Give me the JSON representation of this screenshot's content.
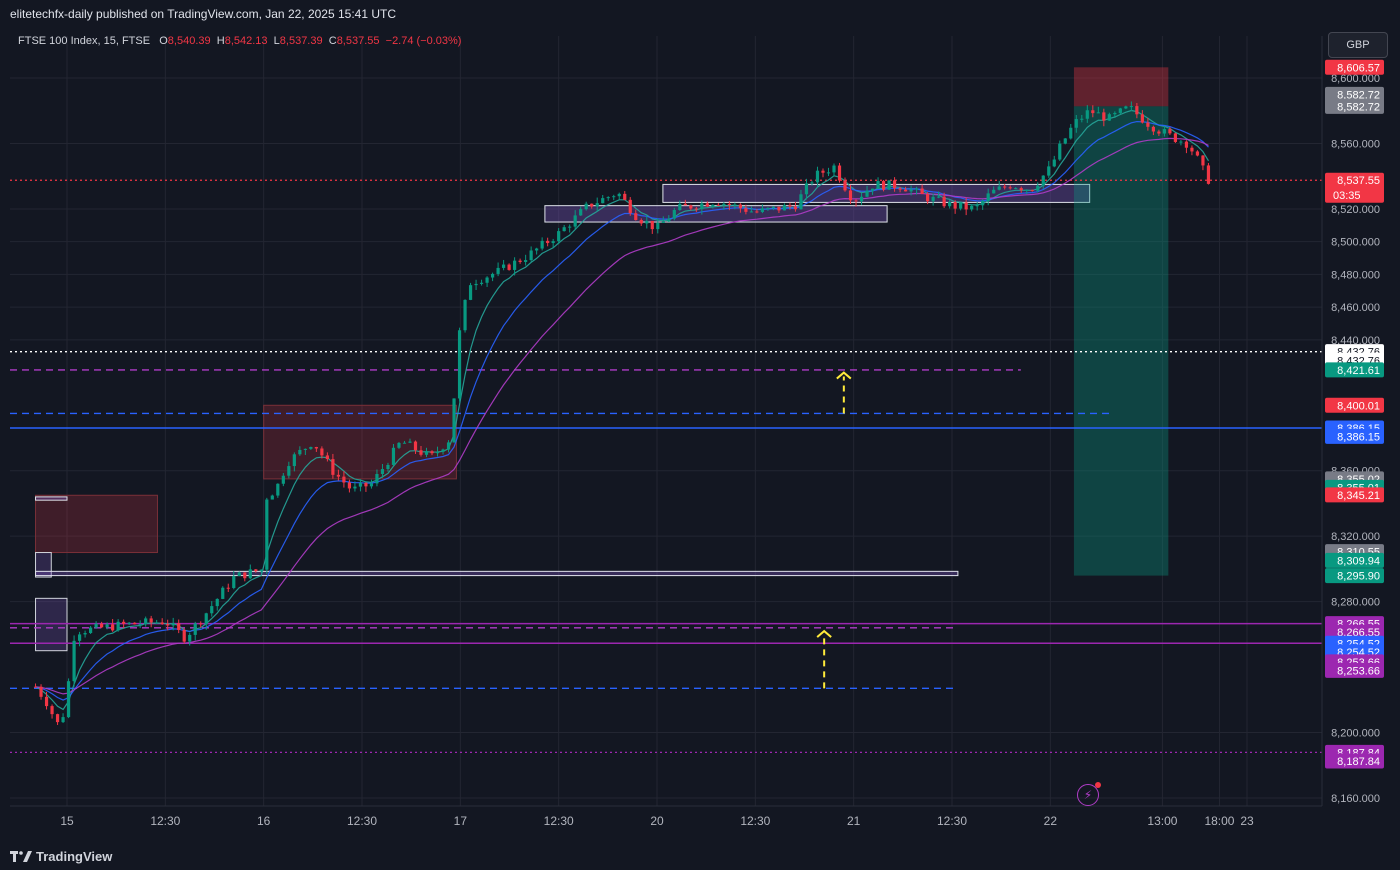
{
  "header": {
    "published": "elitetechfx-daily published on TradingView.com, Jan 22, 2025 15:41 UTC"
  },
  "legend": {
    "symbol": "FTSE 100 Index, 15, FTSE",
    "o_label": "O",
    "o": "8,540.39",
    "h_label": "H",
    "h": "8,542.13",
    "l_label": "L",
    "l": "8,537.39",
    "c_label": "C",
    "c": "8,537.55",
    "change": "−2.74 (−0.03%)"
  },
  "currency": "GBP",
  "footer": {
    "brand": "TradingView"
  },
  "colors": {
    "background": "#131722",
    "grid": "#232632",
    "up": "#089981",
    "down": "#f23645",
    "ema_fast": "#26a69a",
    "ema_mid": "#2962ff",
    "ema_slow": "#b03cc8"
  },
  "chart_data": {
    "type": "candlestick",
    "ylim": [
      8150,
      8620
    ],
    "y_ticks": [
      8160,
      8200,
      8280,
      8320,
      8360,
      8440,
      8460,
      8480,
      8500,
      8520,
      8560,
      8600
    ],
    "x_ticks": [
      {
        "label": "15",
        "t": 0.0
      },
      {
        "label": "12:30",
        "t": 0.5
      },
      {
        "label": "16",
        "t": 1.0
      },
      {
        "label": "12:30",
        "t": 1.5
      },
      {
        "label": "17",
        "t": 2.0
      },
      {
        "label": "12:30",
        "t": 2.5
      },
      {
        "label": "20",
        "t": 3.0
      },
      {
        "label": "12:30",
        "t": 3.5
      },
      {
        "label": "21",
        "t": 4.0
      },
      {
        "label": "12:30",
        "t": 4.5
      },
      {
        "label": "22",
        "t": 5.0
      },
      {
        "label": "13:00",
        "t": 5.57
      },
      {
        "label": "18:00",
        "t": 5.86
      },
      {
        "label": "23",
        "t": 6.0
      }
    ],
    "t_range": [
      -0.16,
      6.48
    ],
    "price_path": [
      [
        -0.16,
        8228
      ],
      [
        -0.1,
        8218
      ],
      [
        -0.05,
        8205
      ],
      [
        0.0,
        8215
      ],
      [
        0.02,
        8255
      ],
      [
        0.05,
        8262
      ],
      [
        0.3,
        8266
      ],
      [
        0.5,
        8268
      ],
      [
        0.6,
        8258
      ],
      [
        0.7,
        8272
      ],
      [
        0.85,
        8295
      ],
      [
        1.0,
        8300
      ],
      [
        1.02,
        8355
      ],
      [
        1.05,
        8345
      ],
      [
        1.12,
        8365
      ],
      [
        1.25,
        8378
      ],
      [
        1.35,
        8360
      ],
      [
        1.45,
        8348
      ],
      [
        1.55,
        8352
      ],
      [
        1.7,
        8378
      ],
      [
        1.85,
        8368
      ],
      [
        1.95,
        8380
      ],
      [
        2.0,
        8450
      ],
      [
        2.05,
        8475
      ],
      [
        2.2,
        8482
      ],
      [
        2.35,
        8492
      ],
      [
        2.5,
        8505
      ],
      [
        2.65,
        8522
      ],
      [
        2.8,
        8530
      ],
      [
        2.9,
        8515
      ],
      [
        3.0,
        8508
      ],
      [
        3.1,
        8520
      ],
      [
        3.3,
        8525
      ],
      [
        3.5,
        8518
      ],
      [
        3.7,
        8522
      ],
      [
        3.8,
        8540
      ],
      [
        3.9,
        8546
      ],
      [
        3.95,
        8535
      ],
      [
        4.0,
        8525
      ],
      [
        4.1,
        8535
      ],
      [
        4.25,
        8534
      ],
      [
        4.35,
        8528
      ],
      [
        4.5,
        8522
      ],
      [
        4.62,
        8520
      ],
      [
        4.7,
        8530
      ],
      [
        4.8,
        8535
      ],
      [
        4.9,
        8532
      ],
      [
        5.0,
        8545
      ],
      [
        5.05,
        8558
      ],
      [
        5.12,
        8572
      ],
      [
        5.2,
        8580
      ],
      [
        5.3,
        8575
      ],
      [
        5.4,
        8582
      ],
      [
        5.5,
        8572
      ],
      [
        5.6,
        8565
      ],
      [
        5.7,
        8560
      ],
      [
        5.75,
        8550
      ],
      [
        5.8,
        8538
      ],
      [
        5.82,
        8537.55
      ]
    ],
    "zones": [
      {
        "t1": -0.16,
        "t2": 0.46,
        "y1": 8310,
        "y2": 8345,
        "kind": "supply"
      },
      {
        "t1": 1.0,
        "t2": 1.98,
        "y1": 8355,
        "y2": 8400,
        "kind": "supply"
      },
      {
        "t1": -0.16,
        "t2": 0.0,
        "y1": 8250,
        "y2": 8282,
        "kind": "demand"
      },
      {
        "t1": -0.16,
        "t2": -0.08,
        "y1": 8295,
        "y2": 8310,
        "kind": "demand"
      },
      {
        "t1": 2.43,
        "t2": 4.17,
        "y1": 8512,
        "y2": 8522,
        "kind": "box"
      },
      {
        "t1": 3.03,
        "t2": 5.2,
        "y1": 8524,
        "y2": 8535,
        "kind": "box"
      },
      {
        "t1": -0.16,
        "t2": 4.53,
        "y1": 8295.9,
        "y2": 8298.5,
        "kind": "box"
      },
      {
        "t1": -0.16,
        "t2": 0.0,
        "y1": 8342,
        "y2": 8344,
        "kind": "box"
      }
    ],
    "position": {
      "t1": 5.12,
      "t2": 5.6,
      "entry": 8582.72,
      "stop": 8606.57,
      "target": 8295.9
    },
    "levels": [
      {
        "y": 8432.76,
        "style": "dotted",
        "color": "#ffffff"
      },
      {
        "y": 8421.61,
        "style": "dashed",
        "color": "#b03cc8",
        "t2": 4.85
      },
      {
        "y": 8395.0,
        "style": "dashed",
        "color": "#2962ff",
        "t2": 5.3
      },
      {
        "y": 8386.15,
        "style": "solid",
        "color": "#2962ff"
      },
      {
        "y": 8266.55,
        "style": "solid",
        "color": "#9c27b0"
      },
      {
        "y": 8264.0,
        "style": "dashed",
        "color": "#b03cc8",
        "t2": 4.53
      },
      {
        "y": 8254.52,
        "style": "solid",
        "color": "#9c27b0"
      },
      {
        "y": 8227.0,
        "style": "dashed",
        "color": "#2962ff",
        "t2": 4.53
      },
      {
        "y": 8187.84,
        "style": "dotted",
        "color": "#9c27b0"
      },
      {
        "y": 8537.55,
        "style": "dotted",
        "color": "#f23645"
      }
    ],
    "arrows": [
      {
        "t": 3.95,
        "y_from": 8395,
        "y_to": 8420
      },
      {
        "t": 3.85,
        "y_from": 8227,
        "y_to": 8262
      }
    ],
    "price_labels": [
      {
        "text": "8,606.57",
        "y": 8606.57,
        "bg": "#f23645"
      },
      {
        "text": "8,582.72",
        "y": 8590,
        "bg": "#787b86"
      },
      {
        "text": "8,582.72",
        "y": 8582.72,
        "bg": "#787b86"
      },
      {
        "text": "8,537.55",
        "y": 8537.55,
        "bg": "#f23645",
        "sub": "03:35"
      },
      {
        "text": "8,432.76",
        "y": 8432.76,
        "bg": "#ffffff"
      },
      {
        "text": "8,432.76",
        "y": 8427.5,
        "bg": "#ffffff"
      },
      {
        "text": "8,421.61",
        "y": 8421.61,
        "bg": "#089981"
      },
      {
        "text": "8,400.01",
        "y": 8400.01,
        "bg": "#f23645"
      },
      {
        "text": "8,386.15",
        "y": 8386.15,
        "bg": "#2962ff"
      },
      {
        "text": "8,386.15",
        "y": 8381,
        "bg": "#2962ff"
      },
      {
        "text": "8,355.02",
        "y": 8355.02,
        "bg": "#787b86"
      },
      {
        "text": "8,355.01",
        "y": 8349.8,
        "bg": "#089981"
      },
      {
        "text": "8,345.21",
        "y": 8345.21,
        "bg": "#f23645"
      },
      {
        "text": "8,310.55",
        "y": 8310.55,
        "bg": "#787b86"
      },
      {
        "text": "8,309.94",
        "y": 8305.2,
        "bg": "#089981"
      },
      {
        "text": "8,295.90",
        "y": 8295.9,
        "bg": "#089981"
      },
      {
        "text": "8,266.55",
        "y": 8266.55,
        "bg": "#9c27b0"
      },
      {
        "text": "8,266.55",
        "y": 8261.3,
        "bg": "#9c27b0"
      },
      {
        "text": "8,254.52",
        "y": 8254.52,
        "bg": "#2962ff"
      },
      {
        "text": "8,254.52",
        "y": 8249.3,
        "bg": "#2962ff"
      },
      {
        "text": "8,253.66",
        "y": 8243.2,
        "bg": "#9c27b0"
      },
      {
        "text": "8,253.66",
        "y": 8238.0,
        "bg": "#9c27b0"
      },
      {
        "text": "8,187.84",
        "y": 8187.84,
        "bg": "#9c27b0"
      },
      {
        "text": "8,187.84",
        "y": 8182.6,
        "bg": "#9c27b0"
      }
    ]
  }
}
